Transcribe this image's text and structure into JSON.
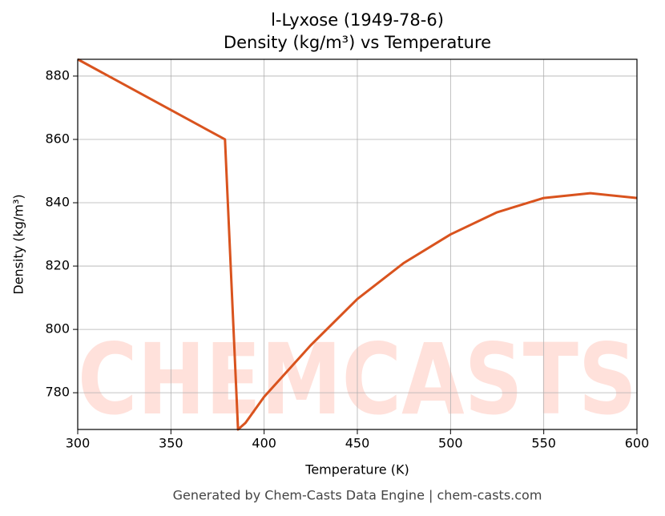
{
  "chart_data": {
    "type": "line",
    "title": "l-Lyxose (1949-78-6)",
    "subtitle": "Density (kg/m³) vs Temperature",
    "x_label": "Temperature (K)",
    "y_label": "Density (kg/m³)",
    "footer": "Generated by Chem-Casts Data Engine | chem-casts.com",
    "watermark": "CHEMCASTS",
    "x": [
      300,
      379,
      386,
      390,
      400,
      425,
      450,
      475,
      500,
      525,
      550,
      575,
      600
    ],
    "series": [
      {
        "name": "Density",
        "color": "#d9531e",
        "values": [
          885.3,
          860,
          768.4,
          770.5,
          778.7,
          795,
          809.6,
          821,
          830,
          837,
          841.5,
          843,
          841.5
        ]
      }
    ],
    "xlim": [
      300,
      600
    ],
    "xticks": [
      300,
      350,
      400,
      450,
      500,
      550,
      600
    ],
    "ylim": [
      768.4,
      885.3
    ],
    "yticks": [
      780,
      800,
      820,
      840,
      860,
      880
    ],
    "grid": true
  }
}
